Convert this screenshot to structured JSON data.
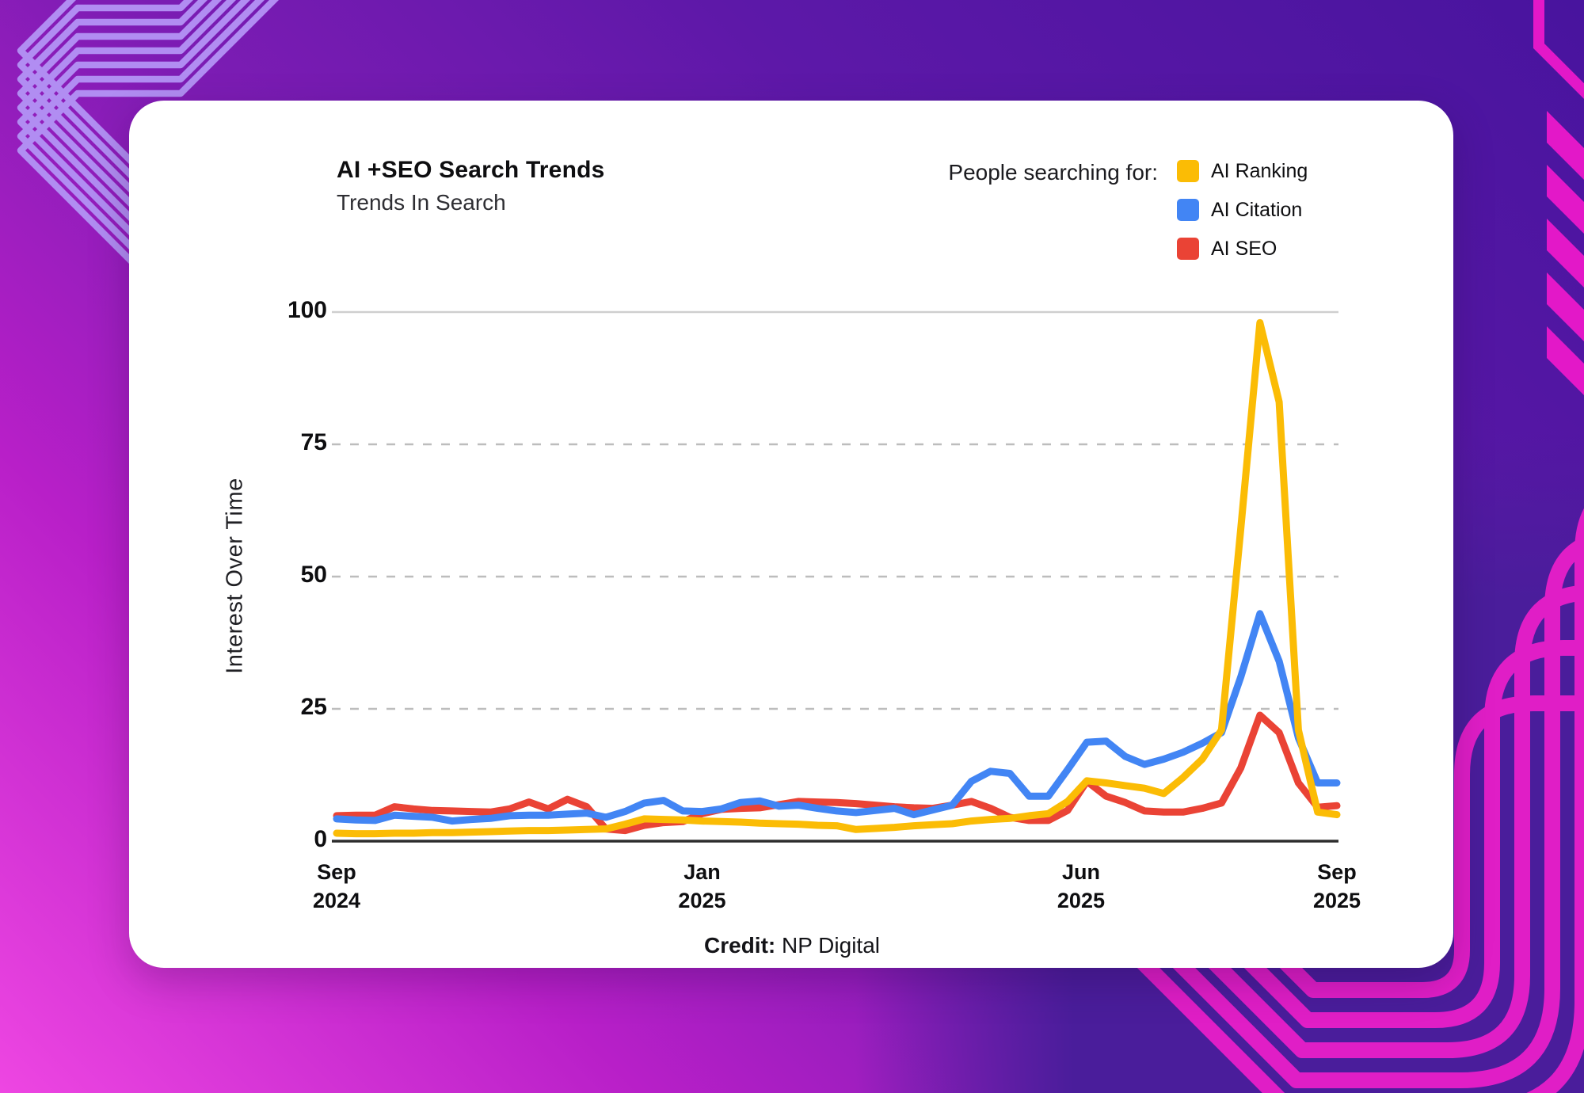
{
  "header": {
    "title": "AI +SEO Search Trends",
    "subtitle": "Trends In Search",
    "legend_title": "People searching for:"
  },
  "footer": {
    "credit_label": "Credit:",
    "credit_value": "NP Digital"
  },
  "colors": {
    "ai_ranking": "#FBBC05",
    "ai_citation": "#4285F4",
    "ai_seo": "#EA4335",
    "card_bg": "#ffffff",
    "bg_purple_dark": "#4a1d9b",
    "bg_magenta": "#e318c8",
    "bg_lavender_lines": "#b18df2",
    "grid_solid": "#cfcfcf",
    "grid_dashed": "#bdbdbd",
    "axis": "#2d2d2d"
  },
  "chart_data": {
    "type": "line",
    "title": "AI +SEO Search Trends",
    "subtitle": "Trends In Search",
    "xlabel": "",
    "ylabel": "Interest Over Time",
    "ylim": [
      0,
      100
    ],
    "yticks": [
      0,
      25,
      50,
      75,
      100
    ],
    "grid": "horizontal; top line solid, others dashed, baseline solid black",
    "legend_position": "top-right",
    "x_unit": "weekly points, Sep 2024 - Sep 2025",
    "weeks": 52,
    "xticks": [
      {
        "week": 0,
        "label": "Sep\n2024"
      },
      {
        "week": 19,
        "label": "Jan\n2025"
      },
      {
        "week": 38.7,
        "label": "Jun\n2025"
      },
      {
        "week": 52,
        "label": "Sep\n2025"
      }
    ],
    "series": [
      {
        "name": "AI Ranking",
        "color": "#FBBC05",
        "values": [
          1.5,
          1.4,
          1.4,
          1.5,
          1.5,
          1.6,
          1.6,
          1.7,
          1.8,
          1.9,
          2,
          2,
          2.1,
          2.2,
          2.3,
          3.2,
          4.2,
          4.1,
          4,
          3.8,
          3.7,
          3.6,
          3.4,
          3.3,
          3.2,
          3,
          2.9,
          2.2,
          2.4,
          2.6,
          2.9,
          3.1,
          3.3,
          3.8,
          4.1,
          4.3,
          4.8,
          5.2,
          7.5,
          11.4,
          11,
          10.5,
          10,
          9,
          12,
          15.5,
          21,
          59,
          98,
          83,
          21,
          5.5,
          5
        ]
      },
      {
        "name": "AI Citation",
        "color": "#4285F4",
        "values": [
          4.2,
          4,
          3.9,
          4.9,
          4.7,
          4.5,
          3.8,
          4.1,
          4.3,
          4.8,
          4.9,
          4.9,
          5.1,
          5.3,
          4.5,
          5.6,
          7.2,
          7.7,
          5.7,
          5.6,
          6.1,
          7.3,
          7.6,
          6.6,
          6.8,
          6.2,
          5.7,
          5.4,
          5.8,
          6.2,
          5,
          5.9,
          6.8,
          11.3,
          13.2,
          12.8,
          8.5,
          8.5,
          13.5,
          18.7,
          18.9,
          16,
          14.5,
          15.5,
          16.8,
          18.5,
          20.5,
          31,
          43,
          34,
          19.5,
          11,
          11
        ]
      },
      {
        "name": "AI SEO",
        "color": "#EA4335",
        "values": [
          4.8,
          4.9,
          4.9,
          6.5,
          6.1,
          5.8,
          5.7,
          5.6,
          5.5,
          6.1,
          7.4,
          6.1,
          7.9,
          6.5,
          2.3,
          2,
          3,
          3.5,
          3.7,
          5.2,
          6,
          6.2,
          6.3,
          6.9,
          7.5,
          7.4,
          7.3,
          7.1,
          6.8,
          6.5,
          6.3,
          6.2,
          6.8,
          7.5,
          6.2,
          4.5,
          3.9,
          3.9,
          5.8,
          11.3,
          8.5,
          7.3,
          5.7,
          5.5,
          5.5,
          6.2,
          7.2,
          13.8,
          23.8,
          20.5,
          11,
          6.4,
          6.7
        ]
      }
    ]
  }
}
